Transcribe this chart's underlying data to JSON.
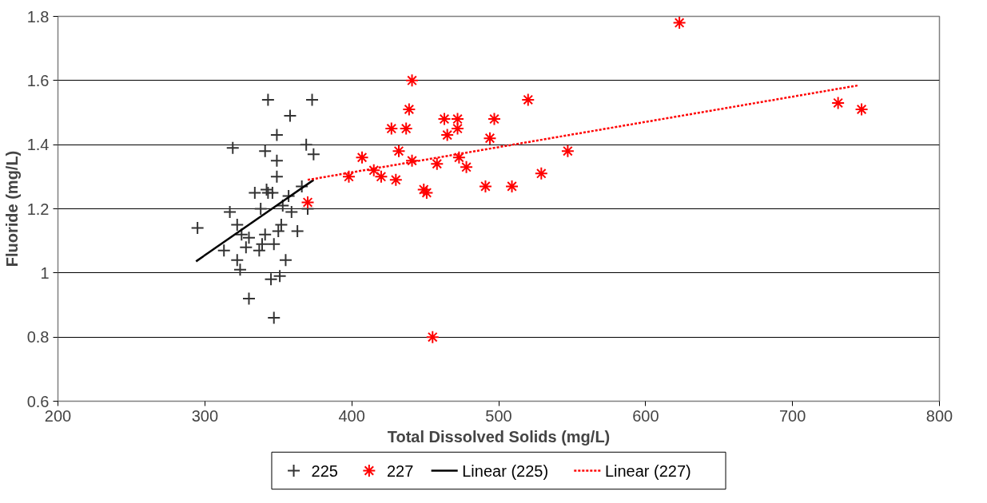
{
  "chart_data": {
    "type": "scatter",
    "xlabel": "Total Dissolved Solids (mg/L)",
    "ylabel": "Fluoride (mg/L)",
    "xlim": [
      200,
      800
    ],
    "xticks": [
      200,
      300,
      400,
      500,
      600,
      700,
      800
    ],
    "ylim": [
      0.6,
      1.8
    ],
    "yticks": [
      0.6,
      0.8,
      1,
      1.2,
      1.4,
      1.6,
      1.8
    ],
    "grid": "y",
    "legend": "bottom",
    "series": [
      {
        "name": "225",
        "marker": "cross",
        "color": "#333333",
        "x": [
          343,
          373,
          358,
          349,
          319,
          341,
          369,
          374,
          349,
          349,
          366,
          334,
          342,
          343,
          346,
          338,
          353,
          357,
          359,
          317,
          295,
          322,
          325,
          330,
          341,
          352,
          350,
          363,
          339,
          347,
          328,
          313,
          337,
          322,
          355,
          324,
          345,
          351,
          330,
          347,
          370
        ],
        "values": [
          1.54,
          1.54,
          1.49,
          1.43,
          1.39,
          1.38,
          1.4,
          1.37,
          1.35,
          1.3,
          1.27,
          1.25,
          1.26,
          1.25,
          1.25,
          1.2,
          1.21,
          1.24,
          1.19,
          1.19,
          1.14,
          1.15,
          1.12,
          1.11,
          1.12,
          1.15,
          1.13,
          1.13,
          1.09,
          1.09,
          1.08,
          1.07,
          1.07,
          1.04,
          1.04,
          1.01,
          0.98,
          0.99,
          0.92,
          0.86,
          1.2
        ]
      },
      {
        "name": "227",
        "color": "#ff0000",
        "x": [
          370,
          398,
          407,
          415,
          420,
          427,
          430,
          432,
          437,
          439,
          441,
          441,
          449,
          451,
          458,
          455,
          463,
          465,
          472,
          472,
          473,
          478,
          491,
          494,
          497,
          509,
          520,
          529,
          547,
          623,
          731,
          747
        ],
        "values": [
          1.22,
          1.3,
          1.36,
          1.32,
          1.3,
          1.45,
          1.29,
          1.38,
          1.45,
          1.51,
          1.35,
          1.6,
          1.26,
          1.25,
          1.34,
          0.8,
          1.48,
          1.43,
          1.48,
          1.45,
          1.36,
          1.33,
          1.27,
          1.42,
          1.48,
          1.27,
          1.54,
          1.31,
          1.38,
          1.78,
          1.53,
          1.51
        ]
      },
      {
        "name": "Linear (225)",
        "type": "line",
        "line_style": "solid",
        "color": "#000000",
        "x": [
          294,
          374
        ],
        "values": [
          1.036,
          1.29
        ]
      },
      {
        "name": "Linear (227)",
        "type": "line",
        "line_style": "dashed",
        "color": "#ff0000",
        "x": [
          370,
          745
        ],
        "values": [
          1.29,
          1.585
        ]
      }
    ]
  }
}
